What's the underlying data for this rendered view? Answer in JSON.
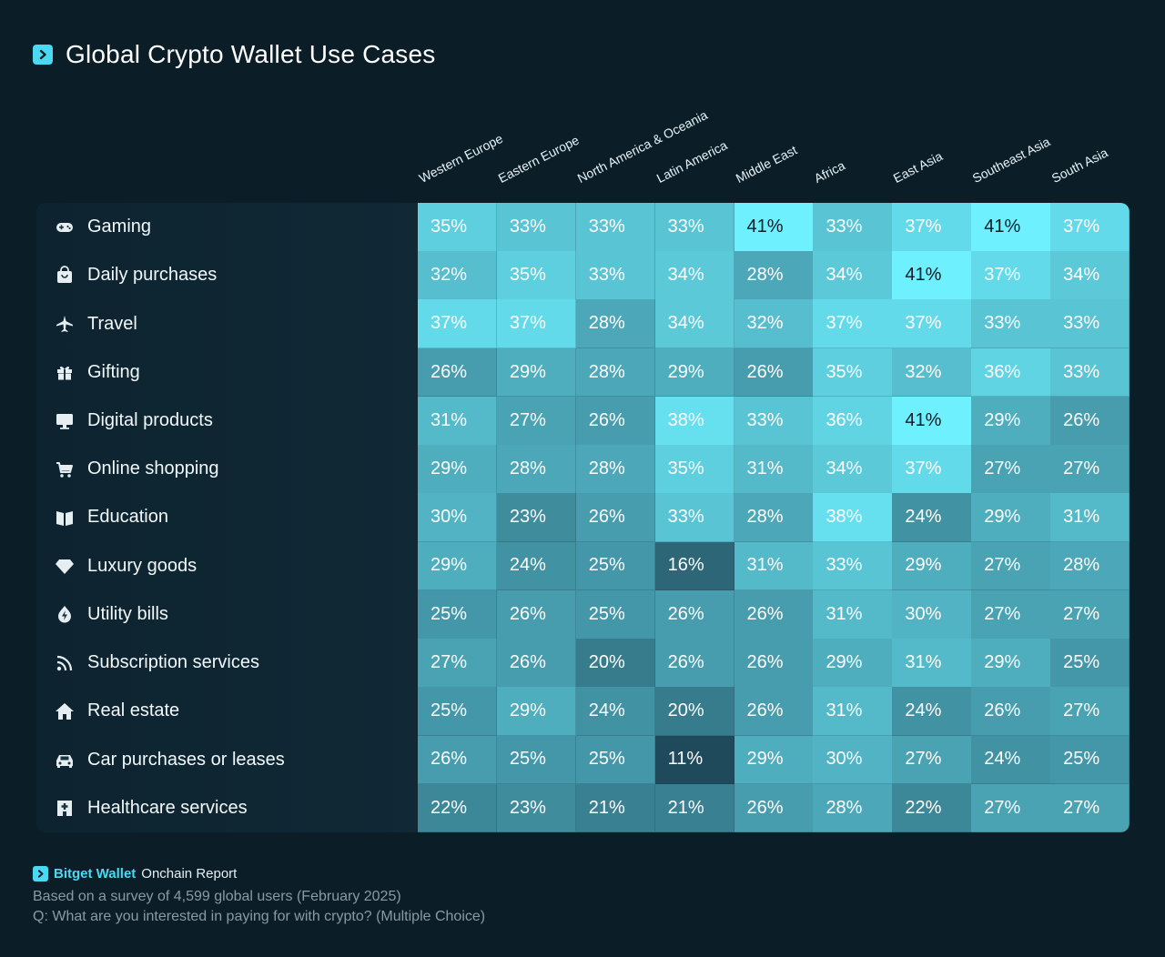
{
  "title": "Global Crypto Wallet Use Cases",
  "chart_data": {
    "type": "heatmap",
    "title": "Global Crypto Wallet Use Cases",
    "columns": [
      "Western Europe",
      "Eastern Europe",
      "North America & Oceania",
      "Latin America",
      "Middle East",
      "Africa",
      "East Asia",
      "Southeast Asia",
      "South Asia"
    ],
    "rows": [
      {
        "label": "Gaming",
        "icon": "gamepad-icon",
        "values": [
          35,
          33,
          33,
          33,
          41,
          33,
          37,
          41,
          37
        ]
      },
      {
        "label": "Daily purchases",
        "icon": "shopping-bag-icon",
        "values": [
          32,
          35,
          33,
          34,
          28,
          34,
          41,
          37,
          34
        ]
      },
      {
        "label": "Travel",
        "icon": "airplane-icon",
        "values": [
          37,
          37,
          28,
          34,
          32,
          37,
          37,
          33,
          33
        ]
      },
      {
        "label": "Gifting",
        "icon": "gift-icon",
        "values": [
          26,
          29,
          28,
          29,
          26,
          35,
          32,
          36,
          33
        ]
      },
      {
        "label": "Digital products",
        "icon": "monitor-icon",
        "values": [
          31,
          27,
          26,
          38,
          33,
          36,
          41,
          29,
          26
        ]
      },
      {
        "label": "Online shopping",
        "icon": "shopping-cart-icon",
        "values": [
          29,
          28,
          28,
          35,
          31,
          34,
          37,
          27,
          27
        ]
      },
      {
        "label": "Education",
        "icon": "book-icon",
        "values": [
          30,
          23,
          26,
          33,
          28,
          38,
          24,
          29,
          31
        ]
      },
      {
        "label": "Luxury goods",
        "icon": "diamond-icon",
        "values": [
          29,
          24,
          25,
          16,
          31,
          33,
          29,
          27,
          28
        ]
      },
      {
        "label": "Utility bills",
        "icon": "energy-icon",
        "values": [
          25,
          26,
          25,
          26,
          26,
          31,
          30,
          27,
          27
        ]
      },
      {
        "label": "Subscription services",
        "icon": "rss-icon",
        "values": [
          27,
          26,
          20,
          26,
          26,
          29,
          31,
          29,
          25
        ]
      },
      {
        "label": "Real estate",
        "icon": "house-icon",
        "values": [
          25,
          29,
          24,
          20,
          26,
          31,
          24,
          26,
          27
        ]
      },
      {
        "label": "Car purchases or leases",
        "icon": "car-icon",
        "values": [
          26,
          25,
          25,
          11,
          29,
          30,
          27,
          24,
          25
        ]
      },
      {
        "label": "Healthcare services",
        "icon": "hospital-icon",
        "values": [
          22,
          23,
          21,
          21,
          26,
          28,
          22,
          27,
          27
        ]
      }
    ],
    "value_suffix": "%",
    "color_scale": {
      "min_value": 11,
      "max_value": 41,
      "min_color": "#1f4a5c",
      "max_color": "#6ef0ff"
    }
  },
  "footer": {
    "brand": "Bitget Wallet",
    "report": "Onchain Report",
    "survey_note": "Based on a survey of 4,599 global users (February 2025)",
    "question": "Q: What are you interested in paying for with crypto? (Multiple Choice)"
  },
  "colors": {
    "accent": "#4ad9f2",
    "background": "#0b1e28"
  }
}
